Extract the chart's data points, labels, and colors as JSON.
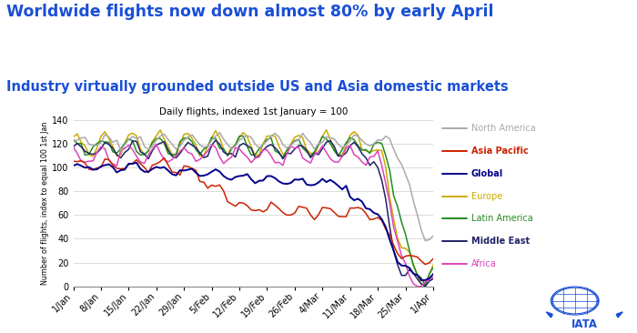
{
  "title1": "Worldwide flights now down almost 80% by early April",
  "title2": "Industry virtually grounded outside US and Asia domestic markets",
  "chart_title": "Daily flights, indexed 1st January = 100",
  "ylabel": "Number of flights, index to equal 100 1st Jan",
  "ylim": [
    0,
    140
  ],
  "background_color": "#ffffff",
  "title1_color": "#1a4fd6",
  "title2_color": "#1a4fd6",
  "chart_title_color": "#000000",
  "series": {
    "North America": {
      "color": "#aaaaaa"
    },
    "Asia Pacific": {
      "color": "#cc2200"
    },
    "Global": {
      "color": "#00008b"
    },
    "Europe": {
      "color": "#ccaa00"
    },
    "Latin America": {
      "color": "#228b22"
    },
    "Middle East": {
      "color": "#222266"
    },
    "Africa": {
      "color": "#dd44bb"
    }
  },
  "xtick_labels": [
    "1/Jan",
    "8/Jan",
    "15/Jan",
    "22/Jan",
    "29/Jan",
    "5/Feb",
    "12/Feb",
    "19/Feb",
    "26/Feb",
    "4/Mar",
    "11/Mar",
    "18/Mar",
    "25/Mar",
    "1/Apr"
  ],
  "n_days": 92
}
